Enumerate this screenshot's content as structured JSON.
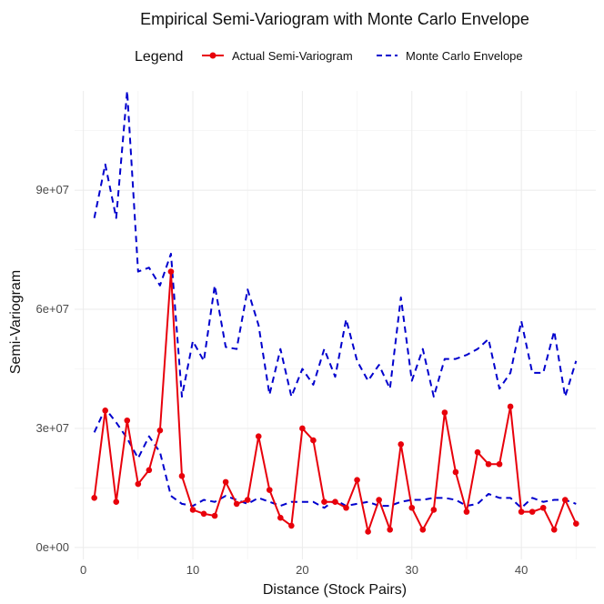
{
  "chart_data": {
    "type": "line",
    "title": "Empirical Semi-Variogram with Monte Carlo Envelope",
    "xlabel": "Distance (Stock Pairs)",
    "ylabel": "Semi-Variogram",
    "legend": {
      "title": "Legend",
      "position": "top"
    },
    "xlim": [
      -0.8,
      46.8
    ],
    "ylim": [
      -3000000,
      115000000
    ],
    "x_ticks": [
      0,
      10,
      20,
      30,
      40
    ],
    "x_tick_labels": [
      "0",
      "10",
      "20",
      "30",
      "40"
    ],
    "y_ticks": [
      0,
      30000000,
      60000000,
      90000000
    ],
    "y_tick_labels": [
      "0e+00",
      "3e+07",
      "6e+07",
      "9e+07"
    ],
    "grid": true,
    "series": [
      {
        "name": "Actual Semi-Variogram",
        "color": "#e8000b",
        "style": "solid",
        "marker": "circle",
        "x": [
          1,
          2,
          3,
          4,
          5,
          6,
          7,
          8,
          9,
          10,
          11,
          12,
          13,
          14,
          15,
          16,
          17,
          18,
          19,
          20,
          21,
          22,
          23,
          24,
          25,
          26,
          27,
          28,
          29,
          30,
          31,
          32,
          33,
          34,
          35,
          36,
          37,
          38,
          39,
          40,
          41,
          42,
          43,
          44,
          45
        ],
        "values": [
          12500000,
          34500000,
          11500000,
          32000000,
          16000000,
          19500000,
          29500000,
          69500000,
          18000000,
          9500000,
          8500000,
          8000000,
          16500000,
          11000000,
          12000000,
          28000000,
          14500000,
          7500000,
          5500000,
          30000000,
          27000000,
          11500000,
          11500000,
          10000000,
          17000000,
          4000000,
          12000000,
          4500000,
          26000000,
          10000000,
          4500000,
          9500000,
          34000000,
          19000000,
          9000000,
          24000000,
          21000000,
          21000000,
          35500000,
          9000000,
          9000000,
          10000000,
          4500000,
          12000000,
          6000000
        ]
      },
      {
        "name": "Monte Carlo Envelope",
        "color": "#0000cd",
        "style": "dashed",
        "lower": {
          "x": [
            1,
            2,
            3,
            4,
            5,
            6,
            7,
            8,
            9,
            10,
            11,
            12,
            13,
            14,
            15,
            16,
            17,
            18,
            19,
            20,
            21,
            22,
            23,
            24,
            25,
            26,
            27,
            28,
            29,
            30,
            31,
            32,
            33,
            34,
            35,
            36,
            37,
            38,
            39,
            40,
            41,
            42,
            43,
            44,
            45
          ],
          "values": [
            29000000,
            35000000,
            31500000,
            27500000,
            22500000,
            28000000,
            24000000,
            13000000,
            11000000,
            10500000,
            12000000,
            11500000,
            13000000,
            12000000,
            11000000,
            12500000,
            11500000,
            10500000,
            11500000,
            11500000,
            11500000,
            10000000,
            12000000,
            10500000,
            11000000,
            11500000,
            10500000,
            10500000,
            11500000,
            12000000,
            12000000,
            12500000,
            12500000,
            12000000,
            10500000,
            11000000,
            13500000,
            12500000,
            12500000,
            10000000,
            12500000,
            11500000,
            12000000,
            12000000,
            11000000
          ]
        },
        "upper": {
          "x": [
            1,
            2,
            3,
            4,
            5,
            6,
            7,
            8,
            9,
            10,
            11,
            12,
            13,
            14,
            15,
            16,
            17,
            18,
            19,
            20,
            21,
            22,
            23,
            24,
            25,
            26,
            27,
            28,
            29,
            30,
            31,
            32,
            33,
            34,
            35,
            36,
            37,
            38,
            39,
            40,
            41,
            42,
            43,
            44,
            45
          ],
          "values": [
            83000000,
            96500000,
            83000000,
            115000000,
            69500000,
            70500000,
            66000000,
            74000000,
            38000000,
            52000000,
            47000000,
            66000000,
            50500000,
            50000000,
            65000000,
            56000000,
            38500000,
            50000000,
            38000000,
            45000000,
            41000000,
            50000000,
            43000000,
            57500000,
            47000000,
            42000000,
            46000000,
            40000000,
            63000000,
            42000000,
            50000000,
            38000000,
            47500000,
            47500000,
            48500000,
            50000000,
            52500000,
            40000000,
            44000000,
            57000000,
            44000000,
            44000000,
            54500000,
            38000000,
            47000000
          ]
        }
      }
    ]
  }
}
